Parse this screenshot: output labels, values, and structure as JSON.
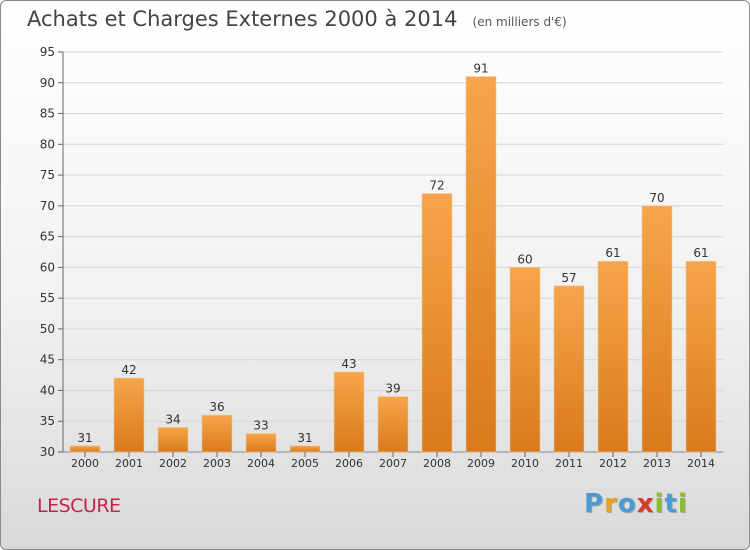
{
  "header": {
    "title": "Achats et Charges Externes 2000 à 2014",
    "subtitle": "(en milliers d'€)"
  },
  "footer": {
    "place": "LESCURE",
    "logo": {
      "letters": [
        "P",
        "r",
        "o",
        "x",
        "i",
        "t",
        "i"
      ],
      "colors": [
        "#4a9ad4",
        "#e8a020",
        "#4a9ad4",
        "#d63a2a",
        "#8bbf2a",
        "#4a9ad4",
        "#8bbf2a"
      ]
    }
  },
  "chart_data": {
    "type": "bar",
    "title": "Achats et Charges Externes 2000 à 2014",
    "subtitle": "(en milliers d'€)",
    "xlabel": "",
    "ylabel": "",
    "categories": [
      "2000",
      "2001",
      "2002",
      "2003",
      "2004",
      "2005",
      "2006",
      "2007",
      "2008",
      "2009",
      "2010",
      "2011",
      "2012",
      "2013",
      "2014"
    ],
    "values": [
      31,
      42,
      34,
      36,
      33,
      31,
      43,
      39,
      72,
      91,
      60,
      57,
      61,
      70,
      61
    ],
    "ylim": [
      30,
      95
    ],
    "yticks": [
      30,
      35,
      40,
      45,
      50,
      55,
      60,
      65,
      70,
      75,
      80,
      85,
      90,
      95
    ],
    "grid": true,
    "bar_color_light": "#f7a54a",
    "bar_color_dark": "#d97a1c"
  }
}
